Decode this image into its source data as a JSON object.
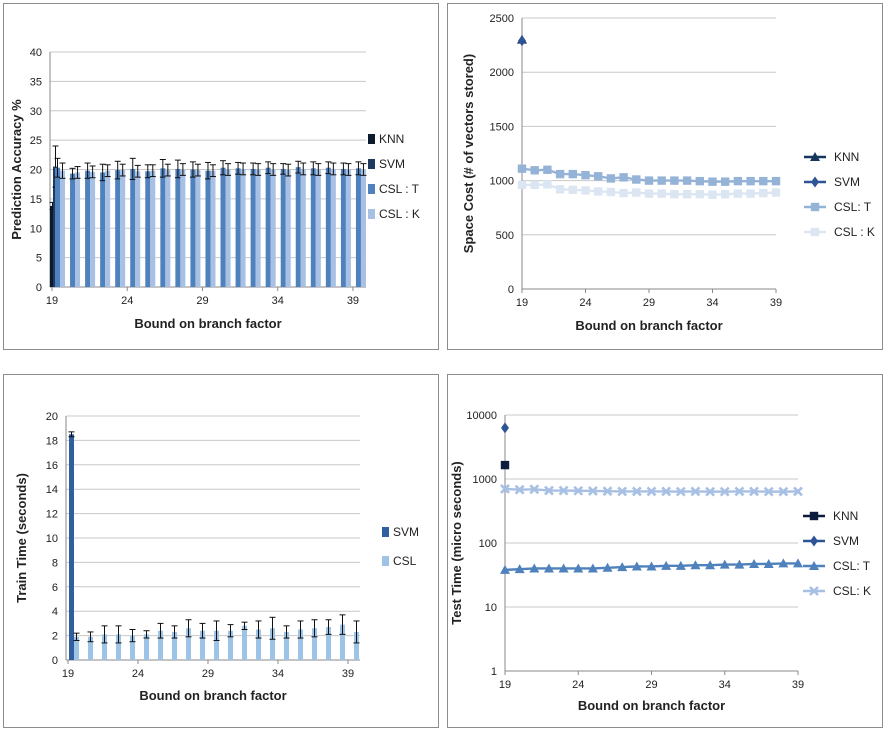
{
  "chart_data": [
    {
      "type": "bar",
      "title": "",
      "xlabel": "Bound on branch factor",
      "ylabel": "Prediction Accuracy %",
      "ylim": [
        0,
        40
      ],
      "yticks": [
        0,
        5,
        10,
        15,
        20,
        25,
        30,
        35,
        40
      ],
      "xtick_labels": [
        "19",
        "24",
        "29",
        "34",
        "39"
      ],
      "categories": [
        19,
        20,
        21,
        22,
        23,
        24,
        25,
        26,
        27,
        28,
        29,
        30,
        31,
        32,
        33,
        34,
        35,
        36,
        37,
        38,
        39
      ],
      "grid": true,
      "legend": "right",
      "series": [
        {
          "name": "KNN",
          "color": "#0d1b2e",
          "values": [
            13.8,
            null,
            null,
            null,
            null,
            null,
            null,
            null,
            null,
            null,
            null,
            null,
            null,
            null,
            null,
            null,
            null,
            null,
            null,
            null,
            null
          ],
          "errors": [
            0.6,
            null,
            null,
            null,
            null,
            null,
            null,
            null,
            null,
            null,
            null,
            null,
            null,
            null,
            null,
            null,
            null,
            null,
            null,
            null,
            null
          ]
        },
        {
          "name": "SVM",
          "color": "#1f3a5f",
          "values": [
            20.5,
            null,
            null,
            null,
            null,
            null,
            null,
            null,
            null,
            null,
            null,
            null,
            null,
            null,
            null,
            null,
            null,
            null,
            null,
            null,
            null
          ],
          "errors": [
            3.5,
            null,
            null,
            null,
            null,
            null,
            null,
            null,
            null,
            null,
            null,
            null,
            null,
            null,
            null,
            null,
            null,
            null,
            null,
            null,
            null
          ]
        },
        {
          "name": "CSL : T",
          "color": "#4f81bd",
          "values": [
            20.3,
            19.3,
            19.8,
            19.5,
            19.9,
            20.1,
            19.7,
            20.2,
            20.1,
            20.0,
            19.8,
            20.3,
            20.2,
            20.1,
            20.3,
            20.1,
            20.4,
            20.2,
            20.3,
            20.1,
            20.2
          ],
          "errors": [
            1.6,
            0.9,
            1.3,
            1.4,
            1.5,
            1.8,
            1.1,
            1.5,
            1.5,
            1.3,
            1.4,
            1.2,
            1.0,
            1.0,
            1.0,
            0.9,
            1.0,
            1.1,
            1.0,
            1.0,
            1.1
          ]
        },
        {
          "name": "CSL : K",
          "color": "#a7c0e3",
          "values": [
            19.8,
            19.5,
            19.6,
            19.8,
            19.9,
            19.7,
            19.8,
            19.9,
            20.0,
            19.9,
            19.8,
            20.0,
            20.1,
            20.0,
            20.0,
            19.9,
            20.1,
            20.0,
            20.1,
            20.0,
            20.0
          ],
          "errors": [
            1.3,
            1.0,
            1.0,
            1.0,
            1.0,
            1.0,
            1.0,
            1.0,
            1.0,
            1.0,
            1.0,
            1.0,
            1.0,
            1.0,
            1.0,
            1.0,
            1.0,
            1.0,
            1.0,
            1.0,
            1.0
          ]
        }
      ]
    },
    {
      "type": "line",
      "title": "",
      "xlabel": "Bound on branch factor",
      "ylabel": "Space Cost (# of vectors stored)",
      "ylim": [
        0,
        2500
      ],
      "yticks": [
        0,
        500,
        1000,
        1500,
        2000,
        2500
      ],
      "xlim": [
        19,
        39
      ],
      "xtick_labels": [
        "19",
        "24",
        "29",
        "34",
        "39"
      ],
      "x": [
        19,
        20,
        21,
        22,
        23,
        24,
        25,
        26,
        27,
        28,
        29,
        30,
        31,
        32,
        33,
        34,
        35,
        36,
        37,
        38,
        39
      ],
      "grid": true,
      "legend": "right",
      "series": [
        {
          "name": "KNN",
          "color": "#17365d",
          "marker": "triangle",
          "values": [
            2300,
            null,
            null,
            null,
            null,
            null,
            null,
            null,
            null,
            null,
            null,
            null,
            null,
            null,
            null,
            null,
            null,
            null,
            null,
            null,
            null
          ]
        },
        {
          "name": "SVM",
          "color": "#2f5496",
          "marker": "diamond",
          "values": [
            2290,
            null,
            null,
            null,
            null,
            null,
            null,
            null,
            null,
            null,
            null,
            null,
            null,
            null,
            null,
            null,
            null,
            null,
            null,
            null,
            null
          ]
        },
        {
          "name": "CSL: T",
          "color": "#95b3d7",
          "marker": "square",
          "values": [
            1110,
            1095,
            1100,
            1060,
            1060,
            1050,
            1040,
            1020,
            1030,
            1010,
            1000,
            1000,
            1000,
            1000,
            995,
            990,
            990,
            995,
            995,
            995,
            995
          ]
        },
        {
          "name": "CSL : K",
          "color": "#dce6f2",
          "marker": "square",
          "values": [
            960,
            960,
            965,
            920,
            915,
            910,
            900,
            895,
            885,
            890,
            880,
            880,
            875,
            875,
            875,
            870,
            875,
            880,
            880,
            885,
            890
          ]
        }
      ]
    },
    {
      "type": "bar",
      "title": "",
      "xlabel": "Bound on branch factor",
      "ylabel": "Train Time (seconds)",
      "ylim": [
        0,
        20
      ],
      "yticks": [
        0,
        2,
        4,
        6,
        8,
        10,
        12,
        14,
        16,
        18,
        20
      ],
      "xtick_labels": [
        "19",
        "24",
        "29",
        "34",
        "39"
      ],
      "categories": [
        19,
        20,
        21,
        22,
        23,
        24,
        25,
        26,
        27,
        28,
        29,
        30,
        31,
        32,
        33,
        34,
        35,
        36,
        37,
        38,
        39
      ],
      "grid": true,
      "legend": "right",
      "series": [
        {
          "name": "SVM",
          "color": "#2f5f9e",
          "values": [
            18.5,
            null,
            null,
            null,
            null,
            null,
            null,
            null,
            null,
            null,
            null,
            null,
            null,
            null,
            null,
            null,
            null,
            null,
            null,
            null,
            null
          ],
          "errors": [
            0.2,
            null,
            null,
            null,
            null,
            null,
            null,
            null,
            null,
            null,
            null,
            null,
            null,
            null,
            null,
            null,
            null,
            null,
            null,
            null,
            null
          ]
        },
        {
          "name": "CSL",
          "color": "#9dc3e6",
          "values": [
            1.9,
            1.9,
            2.1,
            2.1,
            2.0,
            2.1,
            2.4,
            2.3,
            2.6,
            2.4,
            2.4,
            2.4,
            2.8,
            2.5,
            2.6,
            2.3,
            2.5,
            2.6,
            2.7,
            2.9,
            2.3
          ],
          "errors": [
            0.3,
            0.4,
            0.7,
            0.7,
            0.5,
            0.3,
            0.6,
            0.5,
            0.7,
            0.6,
            0.8,
            0.5,
            0.3,
            0.7,
            0.9,
            0.5,
            0.7,
            0.7,
            0.6,
            0.8,
            0.9
          ]
        }
      ]
    },
    {
      "type": "line",
      "title": "",
      "xlabel": "Bound on branch factor",
      "ylabel": "Test Time (micro seconds)",
      "yscale": "log",
      "ylim": [
        1,
        10000
      ],
      "ytick_labels": [
        "1",
        "10",
        "100",
        "1000",
        "10000"
      ],
      "xlim": [
        19,
        39
      ],
      "xtick_labels": [
        "19",
        "24",
        "29",
        "34",
        "39"
      ],
      "x": [
        19,
        20,
        21,
        22,
        23,
        24,
        25,
        26,
        27,
        28,
        29,
        30,
        31,
        32,
        33,
        34,
        35,
        36,
        37,
        38,
        39
      ],
      "grid": true,
      "legend": "right",
      "series": [
        {
          "name": "KNN",
          "color": "#0d1b3e",
          "marker": "square",
          "values": [
            1650,
            null,
            null,
            null,
            null,
            null,
            null,
            null,
            null,
            null,
            null,
            null,
            null,
            null,
            null,
            null,
            null,
            null,
            null,
            null,
            null
          ]
        },
        {
          "name": "SVM",
          "color": "#2f5496",
          "marker": "diamond",
          "values": [
            6300,
            null,
            null,
            null,
            null,
            null,
            null,
            null,
            null,
            null,
            null,
            null,
            null,
            null,
            null,
            null,
            null,
            null,
            null,
            null,
            null
          ]
        },
        {
          "name": "CSL: T",
          "color": "#4f81bd",
          "marker": "triangle",
          "values": [
            38,
            39,
            40,
            40,
            40,
            40,
            40,
            41,
            42,
            43,
            43,
            44,
            44,
            45,
            45,
            46,
            46,
            47,
            47,
            48,
            48
          ]
        },
        {
          "name": "CSL: K",
          "color": "#a7c0e3",
          "marker": "x",
          "values": [
            700,
            680,
            690,
            660,
            660,
            655,
            650,
            645,
            640,
            640,
            640,
            640,
            635,
            640,
            635,
            635,
            640,
            640,
            635,
            635,
            640
          ]
        }
      ]
    }
  ]
}
